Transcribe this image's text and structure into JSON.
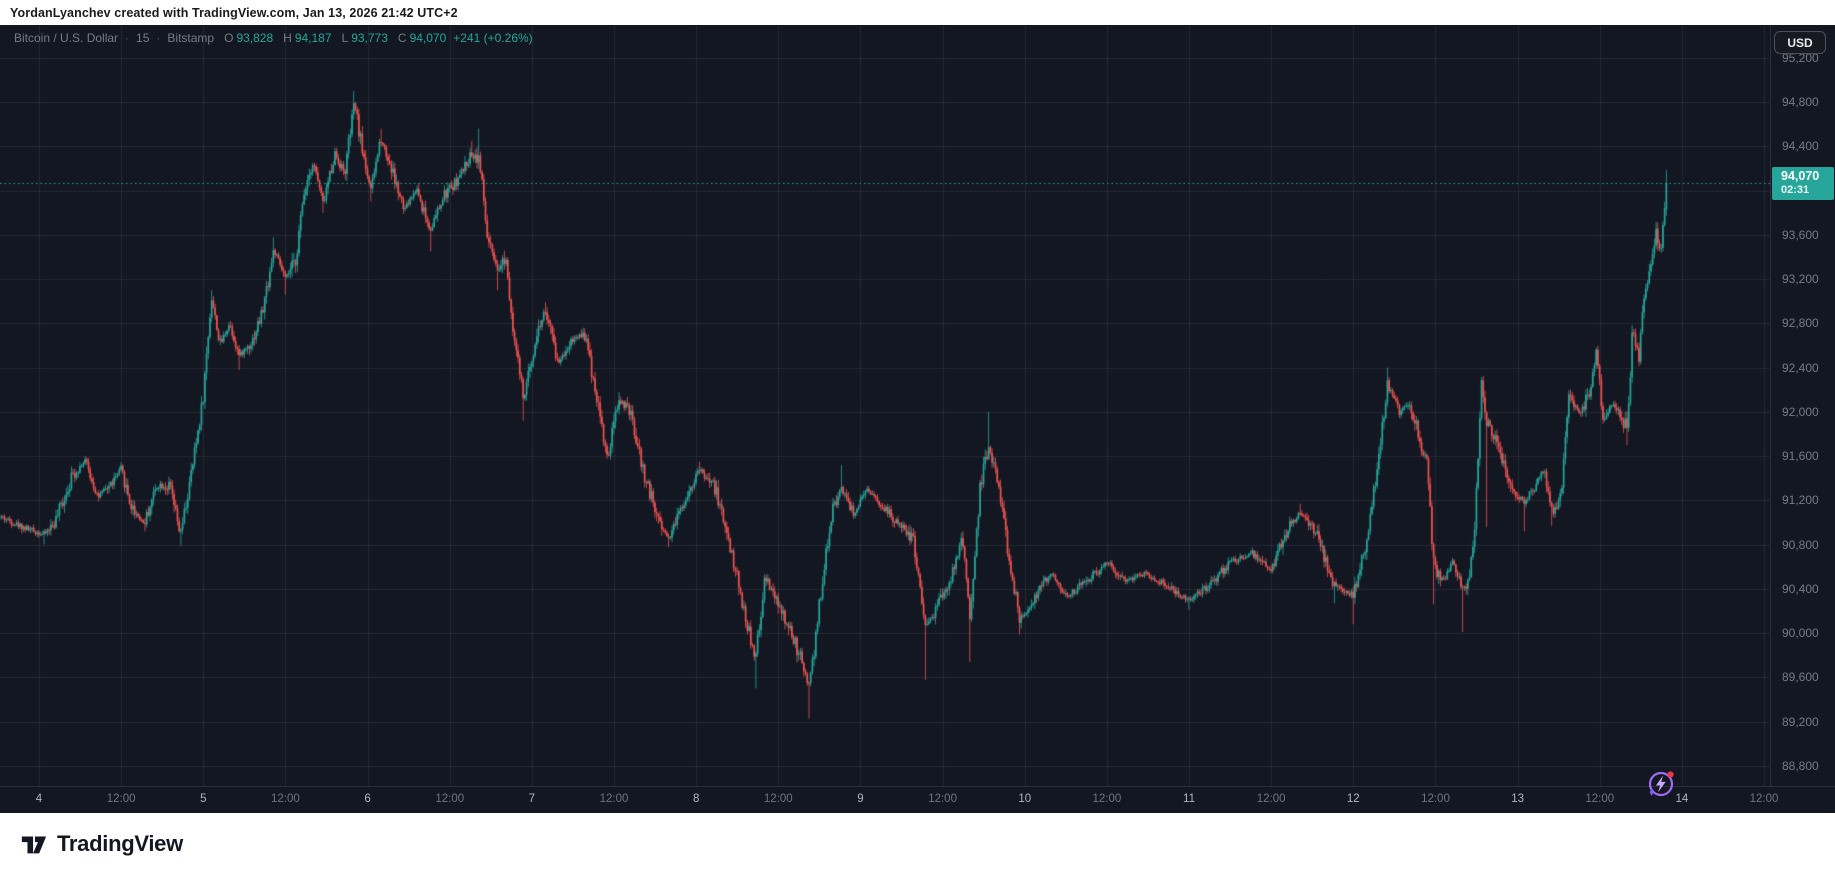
{
  "top_bar": {
    "attribution": "YordanLyanchev created with TradingView.com, Jan 13, 2026 21:42 UTC+2"
  },
  "header": {
    "symbol": "Bitcoin / U.S. Dollar",
    "separator": "·",
    "interval": "15",
    "exchange": "Bitstamp",
    "ohlc": {
      "open_label": "O",
      "open": "93,828",
      "high_label": "H",
      "high": "94,187",
      "low_label": "L",
      "low": "93,773",
      "close_label": "C",
      "close": "94,070",
      "change": "+241 (+0.26%)"
    }
  },
  "price_axis": {
    "currency_button": "USD",
    "labels": [
      {
        "text": "95,200",
        "price": 95200
      },
      {
        "text": "94,800",
        "price": 94800
      },
      {
        "text": "94,400",
        "price": 94400
      },
      {
        "text": "94,000",
        "price": 94000
      },
      {
        "text": "93,600",
        "price": 93600
      },
      {
        "text": "93,200",
        "price": 93200
      },
      {
        "text": "92,800",
        "price": 92800
      },
      {
        "text": "92,400",
        "price": 92400
      },
      {
        "text": "92,000",
        "price": 92000
      },
      {
        "text": "91,600",
        "price": 91600
      },
      {
        "text": "91,200",
        "price": 91200
      },
      {
        "text": "90,800",
        "price": 90800
      },
      {
        "text": "90,400",
        "price": 90400
      },
      {
        "text": "90,000",
        "price": 90000
      },
      {
        "text": "89,600",
        "price": 89600
      },
      {
        "text": "89,200",
        "price": 89200
      },
      {
        "text": "88,800",
        "price": 88800
      }
    ],
    "price_tag": {
      "price": "94,070",
      "countdown": "02:31"
    }
  },
  "time_axis": {
    "labels": [
      {
        "text": "4",
        "d": 0,
        "major": true
      },
      {
        "text": "12:00",
        "d": 0.5,
        "major": false
      },
      {
        "text": "5",
        "d": 1,
        "major": true
      },
      {
        "text": "12:00",
        "d": 1.5,
        "major": false
      },
      {
        "text": "6",
        "d": 2,
        "major": true
      },
      {
        "text": "12:00",
        "d": 2.5,
        "major": false
      },
      {
        "text": "7",
        "d": 3,
        "major": true
      },
      {
        "text": "12:00",
        "d": 3.5,
        "major": false
      },
      {
        "text": "8",
        "d": 4,
        "major": true
      },
      {
        "text": "12:00",
        "d": 4.5,
        "major": false
      },
      {
        "text": "9",
        "d": 5,
        "major": true
      },
      {
        "text": "12:00",
        "d": 5.5,
        "major": false
      },
      {
        "text": "10",
        "d": 6,
        "major": true
      },
      {
        "text": "12:00",
        "d": 6.5,
        "major": false
      },
      {
        "text": "11",
        "d": 7,
        "major": true
      },
      {
        "text": "12:00",
        "d": 7.5,
        "major": false
      },
      {
        "text": "12",
        "d": 8,
        "major": true
      },
      {
        "text": "12:00",
        "d": 8.5,
        "major": false
      },
      {
        "text": "13",
        "d": 9,
        "major": true
      },
      {
        "text": "12:00",
        "d": 9.5,
        "major": false
      },
      {
        "text": "14",
        "d": 10,
        "major": true
      },
      {
        "text": "12:00",
        "d": 10.5,
        "major": false
      }
    ]
  },
  "footer": {
    "brand": "TradingView"
  },
  "chart_data": {
    "type": "candlestick",
    "title": "Bitcoin / U.S. Dollar",
    "interval_minutes": 15,
    "exchange": "Bitstamp",
    "x_unit": "days since Jan 4 2026 00:00 (UTC+2)",
    "xlim_days": [
      -0.2374,
      10.5363
    ],
    "ylim": [
      88619,
      95496
    ],
    "y_grid_start": 88800,
    "y_grid_end": 95200,
    "y_grid_step": 400,
    "x_grid_start": 0,
    "x_grid_end": 10.5,
    "x_grid_step_days": 0.5,
    "bar_step_days": 0.0104167,
    "first_bar_d": -0.23,
    "last_bar_d": 9.906,
    "last_price": 94070,
    "current_bar": {
      "open": 93828,
      "high": 94187,
      "low": 93773,
      "close": 94070,
      "change_abs": 241,
      "change_pct": 0.26,
      "countdown": "02:31"
    },
    "period_high": 94900,
    "period_low": 89230,
    "theme": {
      "background": "#131722",
      "up_color": "#26a69a",
      "down_color": "#ef5350",
      "grid_color": "rgba(136,146,168,0.14)",
      "axis_text": "#787b86",
      "axis_border": "#2a2e39",
      "tag_background": "#26a69a",
      "tag_text": "#ffffff",
      "dotted_line_color": "#26a69a"
    },
    "price_path_format": "[day_offset, close] or [day_offset, close, wick_high, wick_low]",
    "price_path": [
      [
        -0.23,
        91050
      ],
      [
        -0.1,
        90960,
        null,
        90900
      ],
      [
        0.03,
        90890,
        null,
        90800
      ],
      [
        0.1,
        91010
      ],
      [
        0.2,
        91420
      ],
      [
        0.28,
        91560,
        91600,
        null
      ],
      [
        0.36,
        91230
      ],
      [
        0.44,
        91350
      ],
      [
        0.5,
        91480
      ],
      [
        0.56,
        91150
      ],
      [
        0.64,
        90990,
        null,
        90920
      ],
      [
        0.72,
        91350
      ],
      [
        0.8,
        91310
      ],
      [
        0.86,
        90880,
        null,
        90790
      ],
      [
        0.91,
        91280
      ],
      [
        0.95,
        91650
      ],
      [
        1.0,
        92150
      ],
      [
        1.05,
        93050,
        93100,
        null
      ],
      [
        1.1,
        92600
      ],
      [
        1.16,
        92800
      ],
      [
        1.22,
        92500,
        null,
        92380
      ],
      [
        1.3,
        92650
      ],
      [
        1.36,
        92900
      ],
      [
        1.43,
        93470,
        93580,
        null
      ],
      [
        1.5,
        93200,
        null,
        93060
      ],
      [
        1.56,
        93350
      ],
      [
        1.62,
        94050
      ],
      [
        1.67,
        94260
      ],
      [
        1.73,
        93880,
        null,
        93800
      ],
      [
        1.8,
        94340,
        94380,
        null
      ],
      [
        1.86,
        94150
      ],
      [
        1.92,
        94800,
        94900,
        null
      ],
      [
        1.96,
        94430
      ],
      [
        2.02,
        94000,
        null,
        93900
      ],
      [
        2.08,
        94480,
        94560,
        null
      ],
      [
        2.15,
        94180
      ],
      [
        2.22,
        93820
      ],
      [
        2.3,
        94020
      ],
      [
        2.38,
        93640,
        null,
        93450
      ],
      [
        2.47,
        93960
      ],
      [
        2.56,
        94120
      ],
      [
        2.63,
        94330,
        94450,
        null
      ],
      [
        2.68,
        94300,
        94560,
        null
      ],
      [
        2.73,
        93560
      ],
      [
        2.79,
        93250,
        null,
        93100
      ],
      [
        2.84,
        93420
      ],
      [
        2.89,
        92700
      ],
      [
        2.95,
        92100,
        null,
        91920
      ],
      [
        3.02,
        92650
      ],
      [
        3.08,
        92930,
        92990,
        null
      ],
      [
        3.16,
        92440
      ],
      [
        3.24,
        92650
      ],
      [
        3.32,
        92720
      ],
      [
        3.4,
        92100
      ],
      [
        3.46,
        91560
      ],
      [
        3.53,
        92120,
        92180,
        null
      ],
      [
        3.6,
        91980
      ],
      [
        3.68,
        91450
      ],
      [
        3.76,
        91080
      ],
      [
        3.83,
        90850,
        null,
        90780
      ],
      [
        3.92,
        91180
      ],
      [
        4.02,
        91480,
        91550,
        null
      ],
      [
        4.12,
        91300
      ],
      [
        4.22,
        90700
      ],
      [
        4.3,
        90150
      ],
      [
        4.36,
        89750,
        null,
        89500
      ],
      [
        4.42,
        90500
      ],
      [
        4.49,
        90280
      ],
      [
        4.56,
        90050
      ],
      [
        4.63,
        89800
      ],
      [
        4.69,
        89500,
        null,
        89230
      ],
      [
        4.75,
        90250
      ],
      [
        4.82,
        91050
      ],
      [
        4.88,
        91330,
        91520,
        null
      ],
      [
        4.96,
        91080
      ],
      [
        5.04,
        91280
      ],
      [
        5.12,
        91180
      ],
      [
        5.22,
        91000
      ],
      [
        5.32,
        90850
      ],
      [
        5.4,
        90050,
        null,
        89580
      ],
      [
        5.47,
        90250
      ],
      [
        5.55,
        90480
      ],
      [
        5.62,
        90850,
        90920,
        null
      ],
      [
        5.67,
        90100,
        null,
        89740
      ],
      [
        5.73,
        91350
      ],
      [
        5.78,
        91680,
        92000,
        null
      ],
      [
        5.84,
        91380
      ],
      [
        5.9,
        90700
      ],
      [
        5.97,
        90120,
        null,
        89990
      ],
      [
        6.06,
        90320
      ],
      [
        6.16,
        90540
      ],
      [
        6.26,
        90330
      ],
      [
        6.38,
        90480
      ],
      [
        6.5,
        90640
      ],
      [
        6.62,
        90480
      ],
      [
        6.74,
        90540
      ],
      [
        6.87,
        90430
      ],
      [
        7.0,
        90300,
        null,
        90210
      ],
      [
        7.12,
        90420
      ],
      [
        7.25,
        90640
      ],
      [
        7.38,
        90730
      ],
      [
        7.5,
        90550
      ],
      [
        7.6,
        90950
      ],
      [
        7.68,
        91100,
        91170,
        null
      ],
      [
        7.78,
        90880
      ],
      [
        7.88,
        90450,
        null,
        90270
      ],
      [
        8.0,
        90350,
        null,
        90080
      ],
      [
        8.08,
        90800
      ],
      [
        8.15,
        91550
      ],
      [
        8.21,
        92250,
        92400,
        null
      ],
      [
        8.28,
        92000
      ],
      [
        8.34,
        92100
      ],
      [
        8.4,
        91800
      ],
      [
        8.45,
        91500
      ],
      [
        8.49,
        90600,
        null,
        90260
      ],
      [
        8.55,
        90480
      ],
      [
        8.61,
        90650
      ],
      [
        8.67,
        90380,
        null,
        90010
      ],
      [
        8.71,
        90550
      ],
      [
        8.74,
        91020
      ],
      [
        8.78,
        92230,
        92270,
        null
      ],
      [
        8.81,
        91900,
        null,
        90960
      ],
      [
        8.88,
        91720
      ],
      [
        8.96,
        91300
      ],
      [
        9.04,
        91180,
        null,
        90920
      ],
      [
        9.11,
        91340
      ],
      [
        9.16,
        91480
      ],
      [
        9.21,
        91080,
        null,
        90970
      ],
      [
        9.27,
        91300
      ],
      [
        9.31,
        92130
      ],
      [
        9.38,
        92000
      ],
      [
        9.44,
        92180
      ],
      [
        9.48,
        92550,
        92580,
        null
      ],
      [
        9.52,
        91930
      ],
      [
        9.57,
        92080
      ],
      [
        9.62,
        91980
      ],
      [
        9.67,
        91850,
        null,
        91700
      ],
      [
        9.7,
        92780
      ],
      [
        9.74,
        92480
      ],
      [
        9.77,
        93060
      ],
      [
        9.81,
        93280
      ],
      [
        9.84,
        93620,
        93700,
        null
      ],
      [
        9.87,
        93420
      ],
      [
        9.893,
        93830
      ],
      [
        9.906,
        94070
      ]
    ]
  }
}
